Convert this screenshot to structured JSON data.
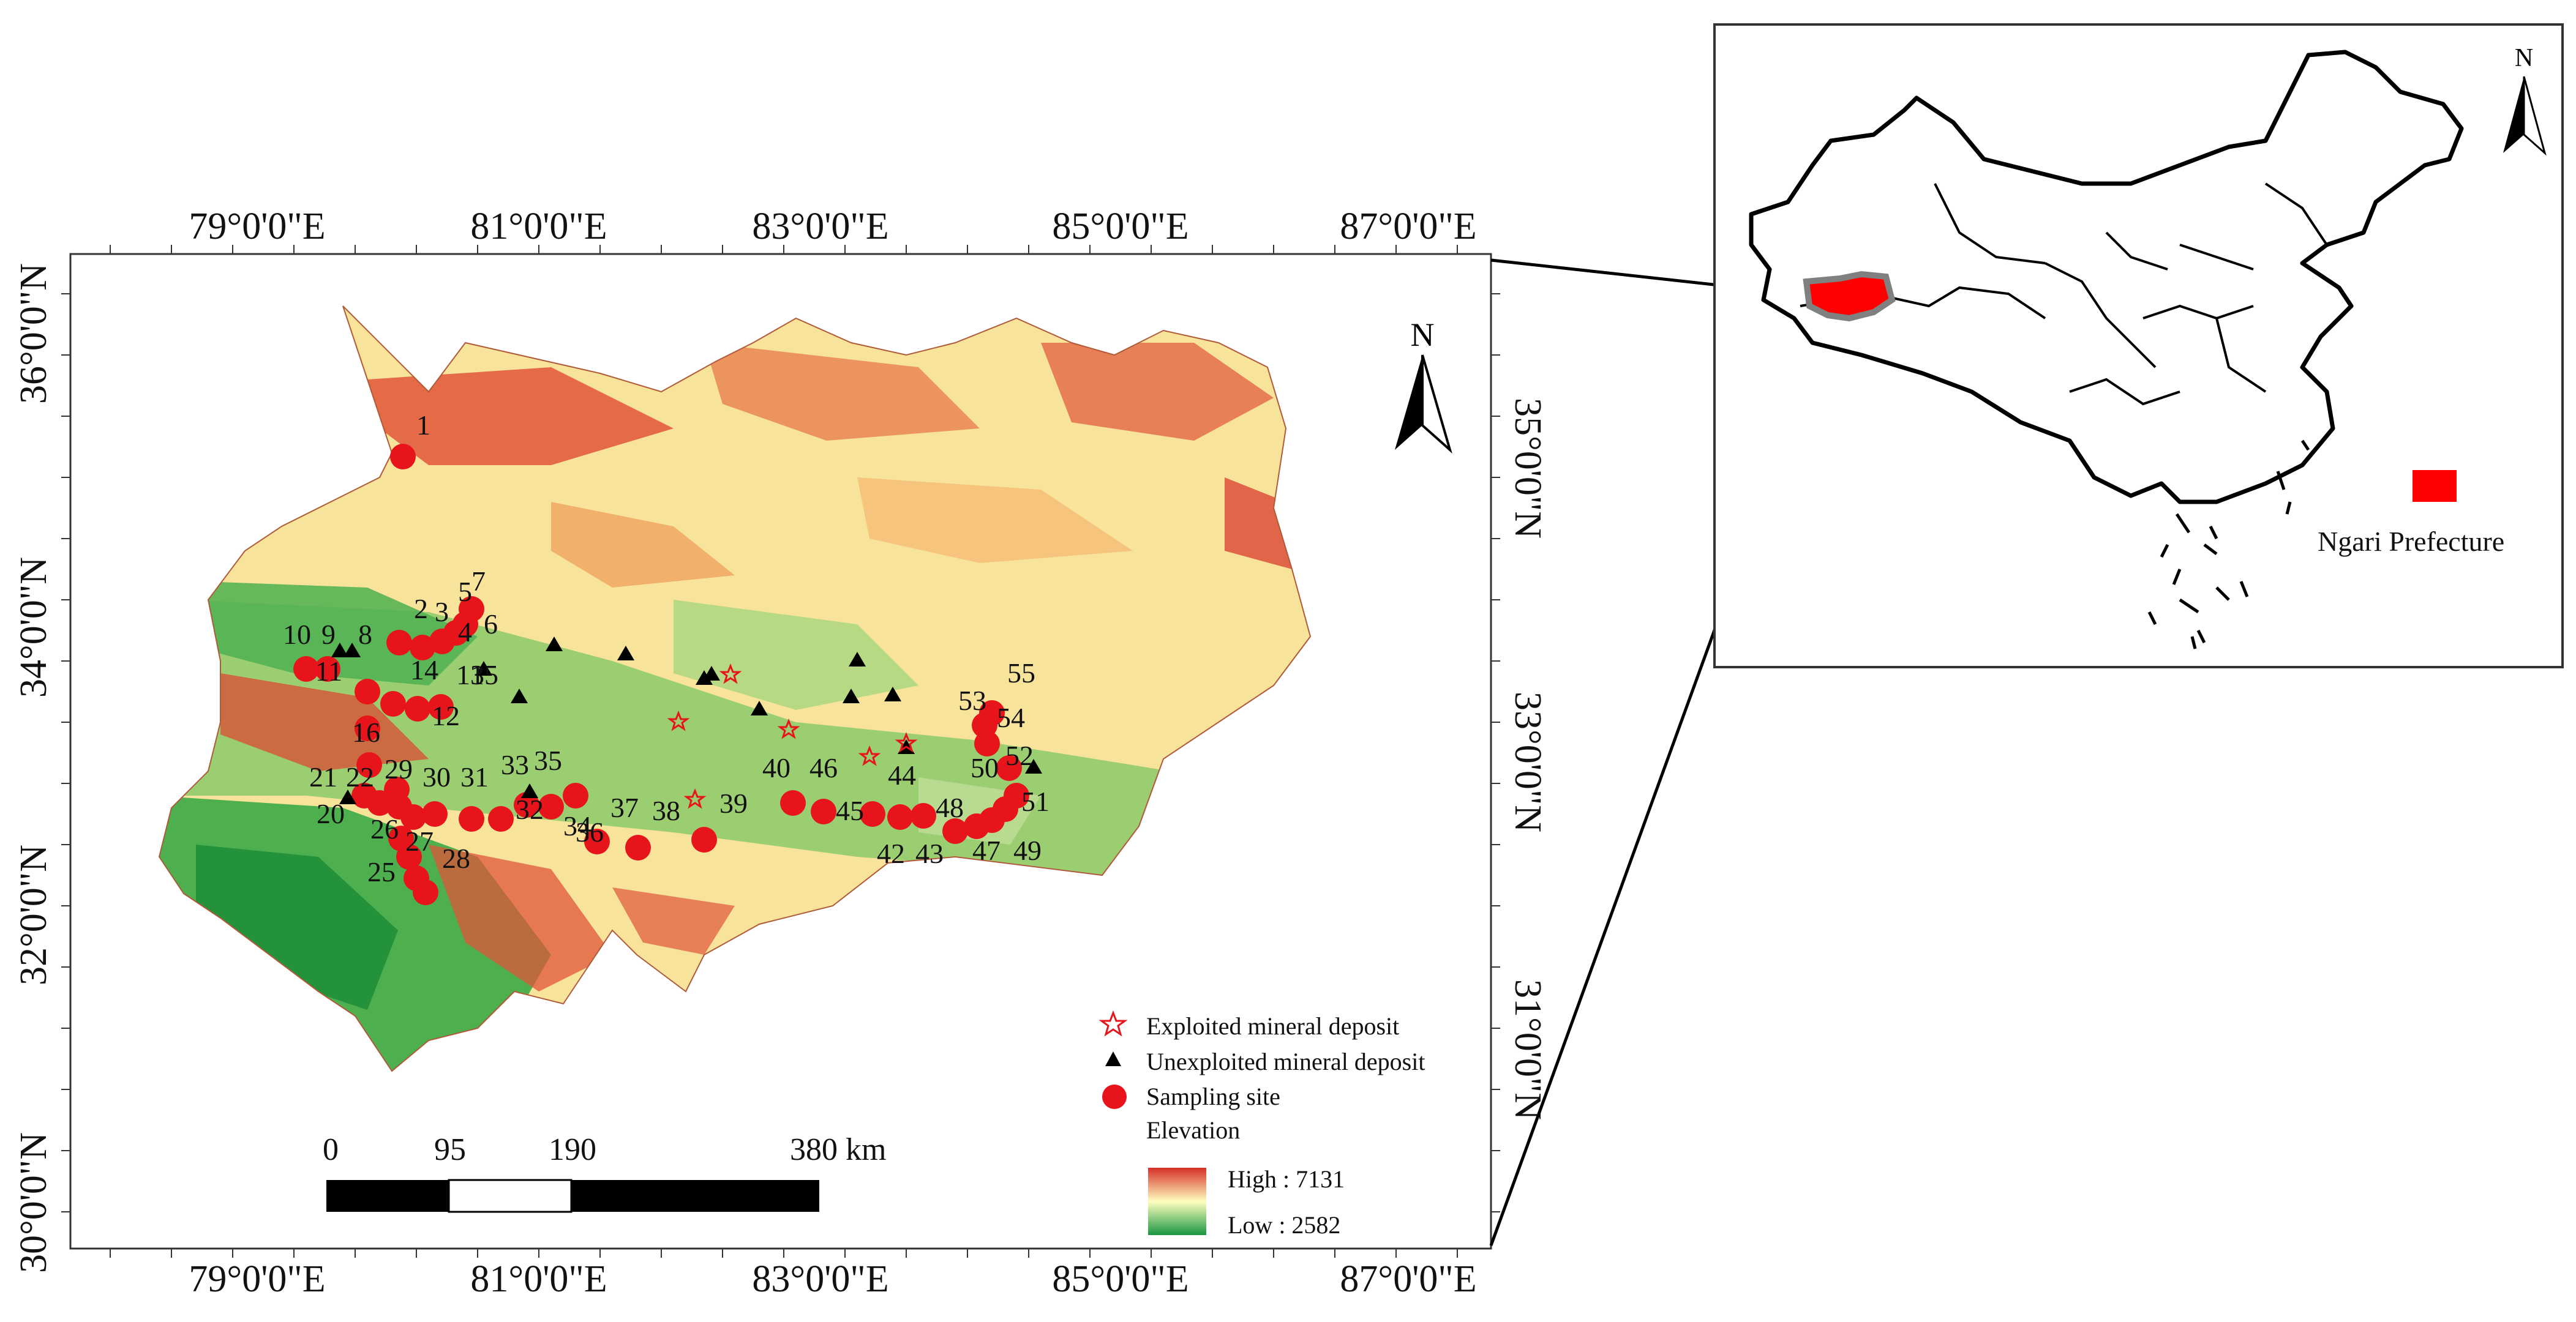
{
  "main_map": {
    "top_lon_labels": [
      "79°0'0\"E",
      "81°0'0\"E",
      "83°0'0\"E",
      "85°0'0\"E",
      "87°0'0\"E"
    ],
    "bottom_lon_labels": [
      "79°0'0\"E",
      "81°0'0\"E",
      "83°0'0\"E",
      "85°0'0\"E",
      "87°0'0\"E"
    ],
    "left_lat_labels": [
      "36°0'0\"N",
      "34°0'0\"N",
      "32°0'0\"N",
      "30°0'0\"N"
    ],
    "right_lat_labels": [
      "35°0'0\"N",
      "33°0'0\"N",
      "31°0'0\"N"
    ],
    "north_label": "N",
    "legend": {
      "exploited": "Exploited mineral deposit",
      "unexploited": "Unexploited mineral deposit",
      "sampling": "Sampling site",
      "elevation_title": "Elevation",
      "high": "High : 7131",
      "low": "Low : 2582",
      "colors": {
        "high": "#d73027",
        "mid": "#ffffbf",
        "low": "#1a9641",
        "sample": "#e8141b",
        "exploited": "#e8141b",
        "unexploited": "#000000"
      }
    },
    "scale_bar": {
      "labels": [
        "0",
        "95",
        "190",
        "380 km"
      ]
    },
    "site_labels": [
      "1",
      "2",
      "3",
      "4",
      "5",
      "6",
      "7",
      "8",
      "9",
      "10",
      "11",
      "12",
      "13",
      "14",
      "15",
      "16",
      "21",
      "22",
      "29",
      "30",
      "31",
      "33",
      "35",
      "36",
      "37",
      "38",
      "39",
      "40",
      "46",
      "44",
      "45",
      "20",
      "26",
      "27",
      "28",
      "25",
      "32",
      "34",
      "42",
      "43",
      "47",
      "48",
      "49",
      "50",
      "51",
      "52",
      "53",
      "54",
      "55"
    ]
  },
  "inset_map": {
    "north_label": "N",
    "legend_label": "Ngari Prefecture",
    "legend_color": "#ff0000"
  }
}
